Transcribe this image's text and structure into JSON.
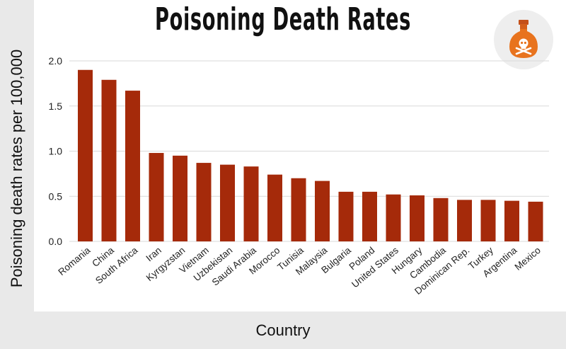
{
  "chart_data": {
    "type": "bar",
    "title": "Poisoning Death Rates",
    "xlabel": "Country",
    "ylabel": "Poisoning death rates per 100,000",
    "ylim": [
      0,
      2.0
    ],
    "yticks": [
      "0.0",
      "0.5",
      "1.0",
      "1.5",
      "2.0"
    ],
    "grid": true,
    "categories": [
      "Romania",
      "China",
      "South Africa",
      "Iran",
      "Kyrgyzstan",
      "Vietnam",
      "Uzbekistan",
      "Saudi Arabia",
      "Morocco",
      "Tunisia",
      "Malaysia",
      "Bulgaria",
      "Poland",
      "United States",
      "Hungary",
      "Cambodia",
      "Dominican Rep.",
      "Turkey",
      "Argentina",
      "Mexico"
    ],
    "values": [
      1.9,
      1.79,
      1.67,
      0.98,
      0.95,
      0.87,
      0.85,
      0.83,
      0.74,
      0.7,
      0.67,
      0.55,
      0.55,
      0.52,
      0.51,
      0.48,
      0.46,
      0.46,
      0.45,
      0.44
    ],
    "bar_color": "#a52a0a"
  },
  "icons": {
    "badge": "poison-bottle-icon"
  },
  "colors": {
    "bar": "#a52a0a",
    "icon_bottle": "#e8731e",
    "icon_skull": "#ffffff"
  }
}
